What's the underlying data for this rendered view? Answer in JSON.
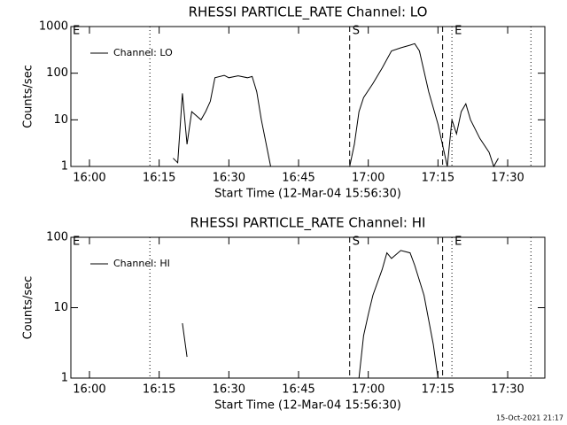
{
  "chart_data": [
    {
      "type": "line",
      "title": "RHESSI PARTICLE_RATE Channel: LO",
      "xlabel": "Start Time (12-Mar-04 15:56:30)",
      "ylabel": "Counts/sec",
      "x": [
        "16:18",
        "16:19",
        "16:20",
        "16:21",
        "16:22",
        "16:24",
        "16:25",
        "16:26",
        "16:27",
        "16:29",
        "16:30",
        "16:32",
        "16:34",
        "16:35",
        "16:36",
        "16:37",
        "16:39",
        "16:47",
        "16:56",
        "16:57",
        "16:58",
        "16:59",
        "17:01",
        "17:03",
        "17:05",
        "17:07",
        "17:09",
        "17:10",
        "17:11",
        "17:13",
        "17:15",
        "17:17",
        "17:18",
        "17:19",
        "17:20",
        "17:21",
        "17:22",
        "17:24",
        "17:26",
        "17:27",
        "17:28"
      ],
      "series": [
        {
          "name": "Channel: LO",
          "color": "#000000",
          "values": [
            1.5,
            1.2,
            37,
            3,
            15,
            10,
            15,
            25,
            80,
            90,
            80,
            88,
            80,
            85,
            40,
            10,
            1,
            null,
            1,
            3,
            15,
            30,
            60,
            130,
            300,
            350,
            400,
            430,
            300,
            40,
            8,
            1,
            10,
            5,
            15,
            22,
            10,
            4,
            2,
            1,
            1.5
          ]
        }
      ],
      "xlim": [
        "15:56",
        "17:38"
      ],
      "xticks": [
        "16:00",
        "16:15",
        "16:30",
        "16:45",
        "17:00",
        "17:15",
        "17:30"
      ],
      "ylim": [
        1,
        1000
      ],
      "yticks": [
        1,
        10,
        100,
        1000
      ],
      "log_y": true,
      "legend": "upper left",
      "vlines": [
        {
          "x": "16:13",
          "style": "dotted"
        },
        {
          "x": "16:56",
          "style": "dashed",
          "label": "S"
        },
        {
          "x": "17:16",
          "style": "dashed"
        },
        {
          "x": "17:18",
          "style": "dotted",
          "label": "E"
        },
        {
          "x": "17:35",
          "style": "dotted"
        }
      ],
      "annotations": [
        {
          "x": "15:56",
          "text": "E"
        }
      ]
    },
    {
      "type": "line",
      "title": "RHESSI PARTICLE_RATE Channel: HI",
      "xlabel": "Start Time (12-Mar-04 15:56:30)",
      "ylabel": "Counts/sec",
      "x": [
        "16:20",
        "16:21",
        "16:47",
        "16:58",
        "16:59",
        "17:00",
        "17:01",
        "17:03",
        "17:04",
        "17:05",
        "17:07",
        "17:09",
        "17:10",
        "17:12",
        "17:14",
        "17:15"
      ],
      "series": [
        {
          "name": "Channel: HI",
          "color": "#000000",
          "values": [
            6,
            2,
            null,
            1,
            4,
            8,
            15,
            35,
            60,
            50,
            65,
            60,
            40,
            15,
            3,
            1
          ]
        }
      ],
      "xlim": [
        "15:56",
        "17:38"
      ],
      "xticks": [
        "16:00",
        "16:15",
        "16:30",
        "16:45",
        "17:00",
        "17:15",
        "17:30"
      ],
      "ylim": [
        1,
        100
      ],
      "yticks": [
        1,
        10,
        100
      ],
      "log_y": true,
      "legend": "upper left",
      "vlines": [
        {
          "x": "16:13",
          "style": "dotted"
        },
        {
          "x": "16:56",
          "style": "dashed",
          "label": "S"
        },
        {
          "x": "17:16",
          "style": "dashed"
        },
        {
          "x": "17:18",
          "style": "dotted",
          "label": "E"
        },
        {
          "x": "17:35",
          "style": "dotted"
        }
      ],
      "annotations": [
        {
          "x": "15:56",
          "text": "E"
        }
      ]
    }
  ],
  "footer": "15-Oct-2021 21:17"
}
